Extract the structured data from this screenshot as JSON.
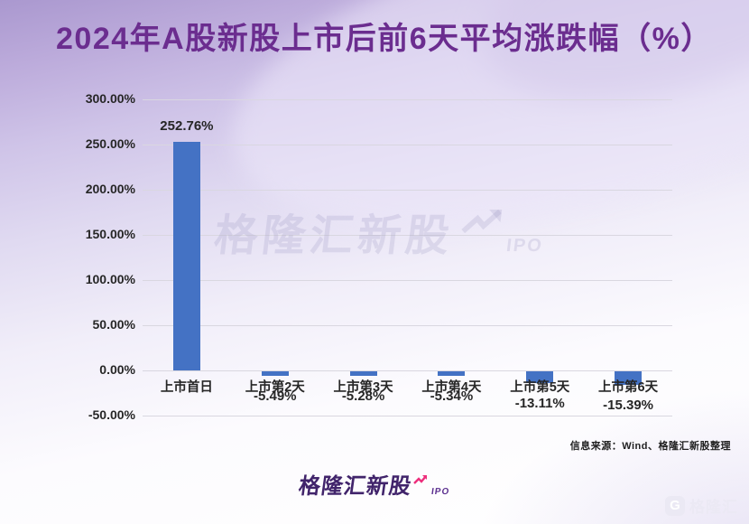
{
  "title": "2024年A股新股上市后前6天平均涨跌幅（%）",
  "source_note": "信息来源：Wind、格隆汇新股整理",
  "watermark": {
    "brand": "格隆汇新股",
    "suffix": "IPO"
  },
  "footer_logo": {
    "brand": "格隆汇新股",
    "suffix": "IPO"
  },
  "corner_logo": {
    "monogram": "G",
    "brand": "格隆汇"
  },
  "colors": {
    "bar": "#4472C4",
    "title_text": "#6B2D8F",
    "axis_text": "#262626",
    "gridline": "#D9D7E0",
    "footer_brand": "#41246B",
    "footer_arrow": "#ED2E7C"
  },
  "chart_data": {
    "type": "bar",
    "title": "2024年A股新股上市后前6天平均涨跌幅（%）",
    "categories": [
      "上市首日",
      "上市第2天",
      "上市第3天",
      "上市第4天",
      "上市第5天",
      "上市第6天"
    ],
    "values": [
      252.76,
      -5.49,
      -5.28,
      -5.34,
      -13.11,
      -15.39
    ],
    "value_labels": [
      "252.76%",
      "-5.49%",
      "-5.28%",
      "-5.34%",
      "-13.11%",
      "-15.39%"
    ],
    "xlabel": "",
    "ylabel": "",
    "ylim": [
      -50,
      300
    ],
    "ytick_step": 50,
    "ytick_labels": [
      "300.00%",
      "250.00%",
      "200.00%",
      "150.00%",
      "100.00%",
      "50.00%",
      "0.00%",
      "-50.00%"
    ],
    "grid": true,
    "legend": "none"
  }
}
